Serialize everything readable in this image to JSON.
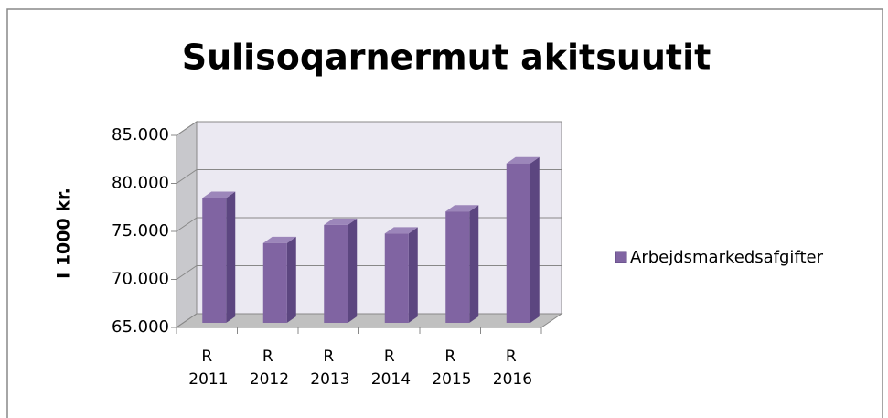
{
  "chart_data": {
    "type": "bar",
    "title": "Sulisoqarnermut akitsuutit",
    "y_label": "I 1000 kr.",
    "categories": [
      "R 2011",
      "R 2012",
      "R 2013",
      "R 2014",
      "R 2015",
      "R 2016"
    ],
    "series": [
      {
        "name": "Arbejdsmarkedsafgifter",
        "color": "#8064a2",
        "values": [
          78000,
          73300,
          75200,
          74300,
          76600,
          81600
        ]
      }
    ],
    "ylim": [
      65000,
      85000
    ],
    "yticks": [
      {
        "value": 65000,
        "label": "65.000"
      },
      {
        "value": 70000,
        "label": "70.000"
      },
      {
        "value": 75000,
        "label": "75.000"
      },
      {
        "value": 80000,
        "label": "80.000"
      },
      {
        "value": 85000,
        "label": "85.000"
      }
    ],
    "grid": true,
    "legend": "right"
  }
}
